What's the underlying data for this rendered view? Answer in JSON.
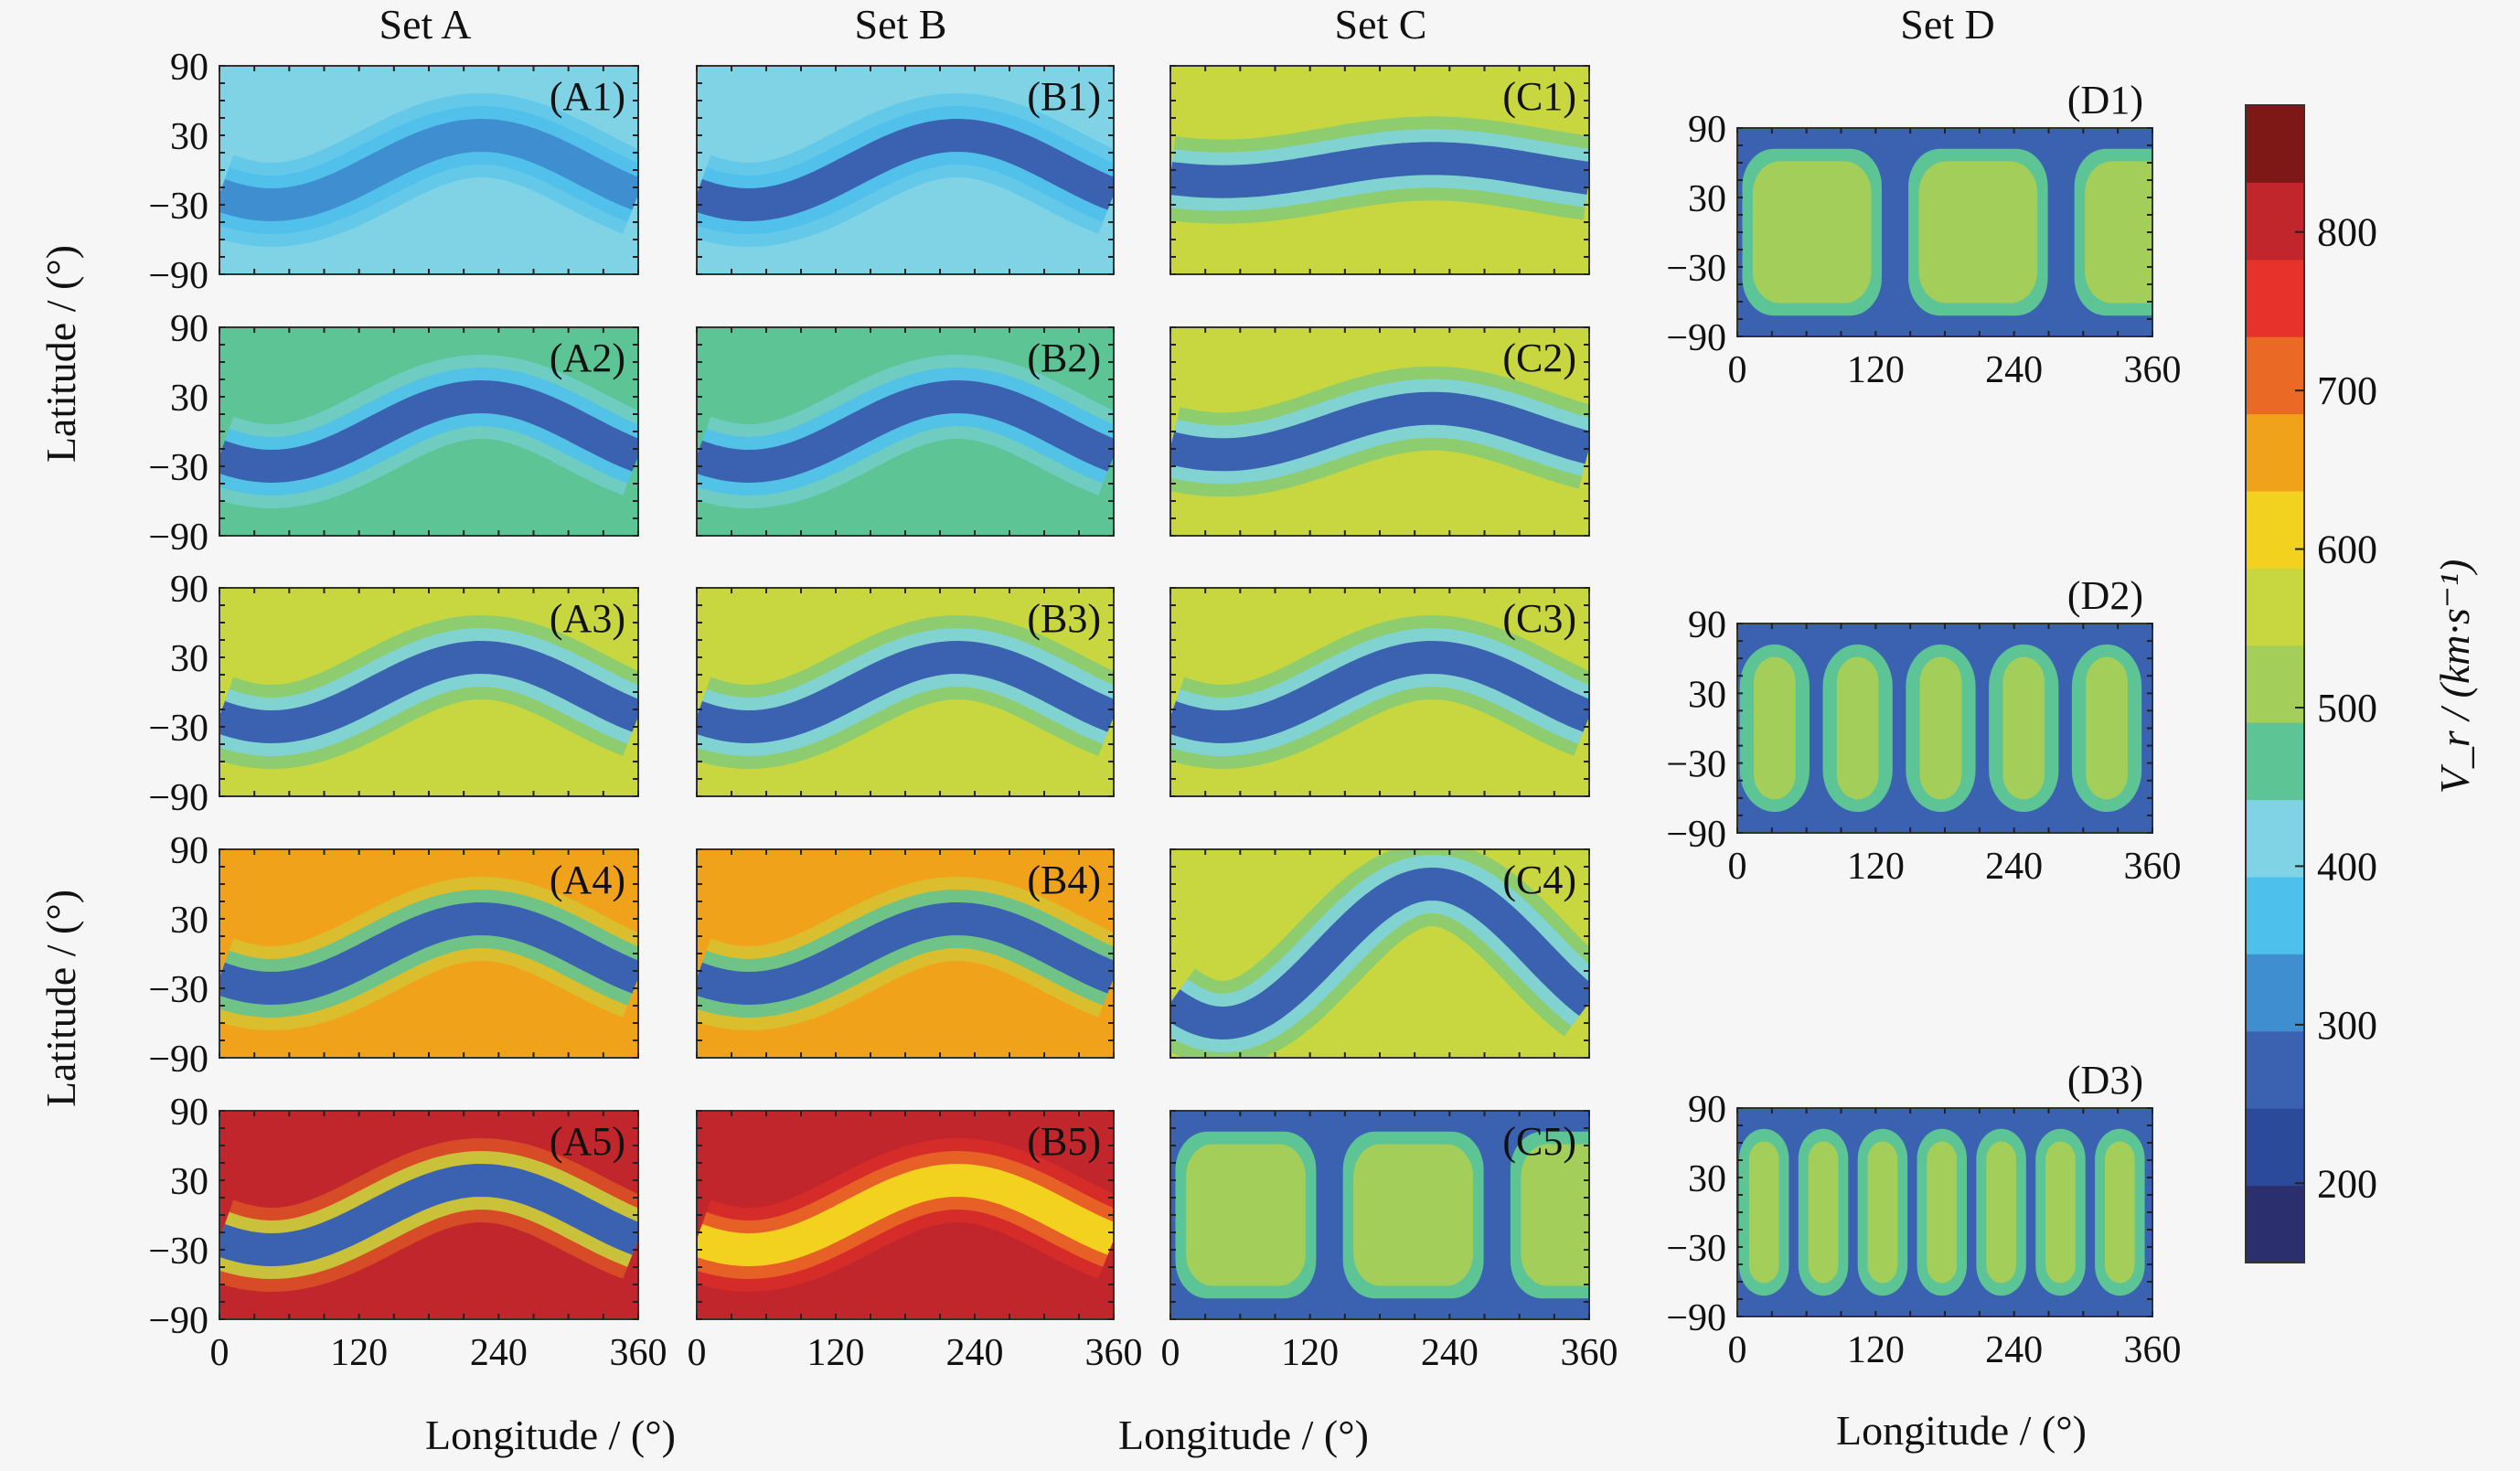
{
  "figure": {
    "set_titles": [
      "Set A",
      "Set B",
      "Set C",
      "Set D"
    ],
    "latitude_label": "Latitude / (°)",
    "longitude_label": "Longitude / (°)",
    "colorbar_label": "V_r / (km·s⁻¹)"
  },
  "chart_data": {
    "type": "heatmap",
    "title": "",
    "xlabel": "Longitude / (°)",
    "ylabel": "Latitude / (°)",
    "xlim": [
      0,
      360
    ],
    "ylim": [
      -90,
      90
    ],
    "x_ticks": [
      0,
      120,
      240,
      360
    ],
    "y_ticks": [
      90,
      30,
      -30,
      -90
    ],
    "colorbar": {
      "label": "V_r / (km·s⁻¹)",
      "range": [
        150,
        880
      ],
      "ticks": [
        200,
        300,
        400,
        500,
        600,
        700,
        800
      ],
      "colors": [
        "#2c2f6e",
        "#2b4a9a",
        "#3a62b0",
        "#3f8fd0",
        "#4ec0ec",
        "#7fd3e4",
        "#5cc495",
        "#a4ce5a",
        "#c8d640",
        "#f2d21e",
        "#f0a21a",
        "#ea6a25",
        "#e6322a",
        "#c0262c",
        "#7e1816"
      ]
    },
    "panels": [
      {
        "label": "(A1)",
        "set": "A",
        "row": 1,
        "description_values": {
          "band_speed": 300,
          "background_speed": 400,
          "band_center_amplitude_deg": 30,
          "band_peak_longitude": 225
        }
      },
      {
        "label": "(A2)",
        "set": "A",
        "row": 2,
        "description_values": {
          "band_speed": 290,
          "background_speed": 480,
          "band_center_amplitude_deg": 30,
          "band_peak_longitude": 225
        }
      },
      {
        "label": "(A3)",
        "set": "A",
        "row": 3,
        "description_values": {
          "band_speed": 290,
          "background_speed": 540,
          "band_center_amplitude_deg": 30,
          "band_peak_longitude": 225
        }
      },
      {
        "label": "(A4)",
        "set": "A",
        "row": 4,
        "description_values": {
          "band_speed": 290,
          "background_speed": 660,
          "band_center_amplitude_deg": 30,
          "band_peak_longitude": 225
        }
      },
      {
        "label": "(A5)",
        "set": "A",
        "row": 5,
        "description_values": {
          "band_speed": 290,
          "background_speed": 830,
          "band_center_amplitude_deg": 30,
          "band_peak_longitude": 225
        }
      },
      {
        "label": "(B1)",
        "set": "B",
        "row": 1,
        "description_values": {
          "band_speed": 270,
          "background_speed": 430,
          "band_center_amplitude_deg": 30,
          "band_peak_longitude": 225
        }
      },
      {
        "label": "(B2)",
        "set": "B",
        "row": 2,
        "description_values": {
          "band_speed": 270,
          "background_speed": 480,
          "band_center_amplitude_deg": 30,
          "band_peak_longitude": 225
        }
      },
      {
        "label": "(B3)",
        "set": "B",
        "row": 3,
        "description_values": {
          "band_speed": 290,
          "background_speed": 540,
          "band_center_amplitude_deg": 30,
          "band_peak_longitude": 225
        }
      },
      {
        "label": "(B4)",
        "set": "B",
        "row": 4,
        "description_values": {
          "band_speed": 290,
          "background_speed": 650,
          "band_center_amplitude_deg": 30,
          "band_peak_longitude": 225
        }
      },
      {
        "label": "(B5)",
        "set": "B",
        "row": 5,
        "description_values": {
          "band_speed": 600,
          "background_speed": 820,
          "band_center_amplitude_deg": 30,
          "band_peak_longitude": 225
        }
      },
      {
        "label": "(C1)",
        "set": "C",
        "row": 1,
        "description_values": {
          "band_speed": 290,
          "background_speed": 540,
          "band_center_amplitude_deg": 10,
          "band_peak_longitude": 225
        }
      },
      {
        "label": "(C2)",
        "set": "C",
        "row": 2,
        "description_values": {
          "band_speed": 290,
          "background_speed": 540,
          "band_center_amplitude_deg": 20,
          "band_peak_longitude": 225
        }
      },
      {
        "label": "(C3)",
        "set": "C",
        "row": 3,
        "description_values": {
          "band_speed": 290,
          "background_speed": 540,
          "band_center_amplitude_deg": 30,
          "band_peak_longitude": 225
        }
      },
      {
        "label": "(C4)",
        "set": "C",
        "row": 4,
        "description_values": {
          "band_speed": 290,
          "background_speed": 540,
          "band_center_amplitude_deg": 60,
          "band_peak_longitude": 225
        }
      },
      {
        "label": "(C5)",
        "set": "C",
        "row": 5,
        "description_values": {
          "band_speed": 290,
          "background_speed": 530,
          "cells_per_360_deg": 2.5
        }
      },
      {
        "label": "(D1)",
        "set": "D",
        "row": 1,
        "description_values": {
          "band_speed": 290,
          "background_speed": 530,
          "cells_per_360_deg": 2.5
        }
      },
      {
        "label": "(D2)",
        "set": "D",
        "row": 2,
        "description_values": {
          "band_speed": 290,
          "background_speed": 530,
          "cells_per_360_deg": 5
        }
      },
      {
        "label": "(D3)",
        "set": "D",
        "row": 3,
        "description_values": {
          "band_speed": 290,
          "background_speed": 530,
          "cells_per_360_deg": 7
        }
      }
    ]
  }
}
